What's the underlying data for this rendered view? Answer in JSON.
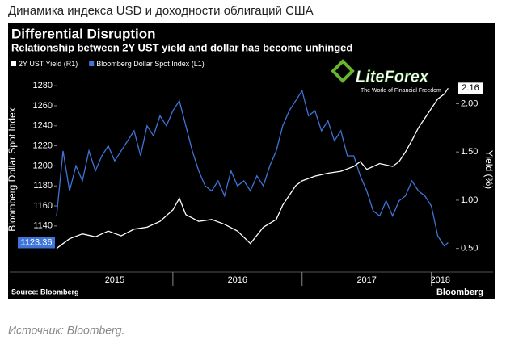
{
  "page": {
    "heading": "Динамика индекса USD и доходности облигаций США",
    "caption": "Источник: Bloomberg."
  },
  "logo": {
    "name": "LiteForex",
    "tagline": "The World of Financial Freedom"
  },
  "chart_data": {
    "type": "line",
    "title": "Differential Disruption",
    "subtitle": "Relationship between 2Y UST yield and dollar has become unhinged",
    "source": "Source: Bloomberg",
    "brand": "Bloomberg",
    "ylabel": "Bloomberg Dollar Spot Index",
    "y2label": "Yield (%)",
    "xlim": [
      2015.1,
      2018.14
    ],
    "xticks": [
      {
        "value": 2015.55,
        "label": "2015"
      },
      {
        "value": 2016.5,
        "label": "2016"
      },
      {
        "value": 2017.5,
        "label": "2017"
      },
      {
        "value": 2018.07,
        "label": "2018"
      }
    ],
    "xdividers": [
      2016,
      2017,
      2018
    ],
    "ylim": [
      1106,
      1289
    ],
    "yticks": [
      1140,
      1160,
      1180,
      1200,
      1220,
      1240,
      1260,
      1280
    ],
    "y2lim": [
      0.38,
      2.28
    ],
    "y2ticks": [
      {
        "value": 0.5,
        "label": "0.50"
      },
      {
        "value": 1,
        "label": "1.00"
      },
      {
        "value": 1.5,
        "label": "1.50"
      },
      {
        "value": 2,
        "label": "2.00"
      }
    ],
    "grid": false,
    "end_labels": true,
    "series": [
      {
        "name": "2Y UST Yield (R1)",
        "color": "#ffffff",
        "axis": "y2",
        "x": [
          2015.1,
          2015.2,
          2015.3,
          2015.4,
          2015.5,
          2015.6,
          2015.7,
          2015.8,
          2015.9,
          2016.0,
          2016.05,
          2016.1,
          2016.2,
          2016.3,
          2016.4,
          2016.5,
          2016.6,
          2016.7,
          2016.8,
          2016.85,
          2016.9,
          2016.95,
          2017.0,
          2017.1,
          2017.2,
          2017.3,
          2017.4,
          2017.45,
          2017.5,
          2017.6,
          2017.7,
          2017.75,
          2017.8,
          2017.85,
          2017.9,
          2017.95,
          2018.0,
          2018.05,
          2018.1,
          2018.13
        ],
        "values": [
          0.5,
          0.6,
          0.65,
          0.62,
          0.68,
          0.63,
          0.7,
          0.72,
          0.78,
          0.9,
          1.02,
          0.85,
          0.78,
          0.8,
          0.75,
          0.68,
          0.55,
          0.72,
          0.8,
          0.95,
          1.05,
          1.15,
          1.2,
          1.25,
          1.28,
          1.3,
          1.35,
          1.4,
          1.32,
          1.38,
          1.35,
          1.4,
          1.5,
          1.62,
          1.75,
          1.85,
          1.95,
          2.05,
          2.1,
          2.16
        ]
      },
      {
        "name": "Bloomberg Dollar Spot Index (L1)",
        "color": "#3f74d8",
        "axis": "y",
        "x": [
          2015.1,
          2015.15,
          2015.2,
          2015.25,
          2015.3,
          2015.35,
          2015.4,
          2015.45,
          2015.5,
          2015.55,
          2015.6,
          2015.65,
          2015.7,
          2015.75,
          2015.8,
          2015.85,
          2015.9,
          2015.95,
          2016.0,
          2016.05,
          2016.1,
          2016.15,
          2016.2,
          2016.25,
          2016.3,
          2016.35,
          2016.4,
          2016.45,
          2016.5,
          2016.55,
          2016.6,
          2016.65,
          2016.7,
          2016.75,
          2016.8,
          2016.85,
          2016.9,
          2016.95,
          2017.0,
          2017.05,
          2017.1,
          2017.15,
          2017.2,
          2017.25,
          2017.3,
          2017.35,
          2017.4,
          2017.45,
          2017.5,
          2017.55,
          2017.6,
          2017.65,
          2017.7,
          2017.75,
          2017.8,
          2017.85,
          2017.9,
          2017.95,
          2018.0,
          2018.05,
          2018.1,
          2018.13
        ],
        "values": [
          1150,
          1215,
          1175,
          1200,
          1185,
          1215,
          1195,
          1210,
          1220,
          1205,
          1215,
          1225,
          1235,
          1210,
          1240,
          1230,
          1250,
          1240,
          1255,
          1265,
          1240,
          1215,
          1195,
          1180,
          1175,
          1185,
          1170,
          1195,
          1180,
          1185,
          1175,
          1190,
          1180,
          1200,
          1215,
          1240,
          1255,
          1265,
          1275,
          1250,
          1255,
          1235,
          1245,
          1225,
          1235,
          1210,
          1210,
          1190,
          1175,
          1155,
          1150,
          1165,
          1150,
          1165,
          1170,
          1185,
          1175,
          1170,
          1160,
          1130,
          1120,
          1123.36
        ]
      }
    ]
  }
}
